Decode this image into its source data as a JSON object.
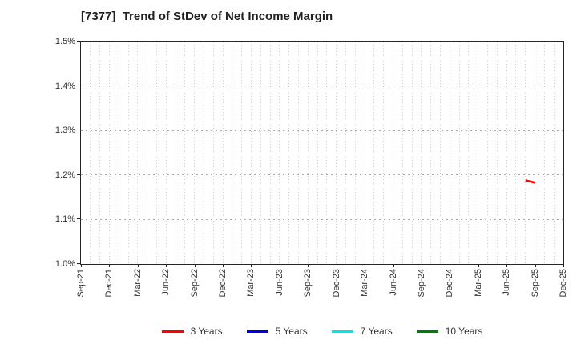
{
  "chart_data": {
    "type": "line",
    "title": "[7377]  Trend of StDev of Net Income Margin",
    "xlabel": "",
    "ylabel": "",
    "ylim": [
      1.0,
      1.5
    ],
    "y_tick_unit": "%",
    "y_ticks": [
      {
        "value": 1.5,
        "label": "1.5%"
      },
      {
        "value": 1.4,
        "label": "1.4%"
      },
      {
        "value": 1.3,
        "label": "1.3%"
      },
      {
        "value": 1.2,
        "label": "1.2%"
      },
      {
        "value": 1.1,
        "label": "1.1%"
      },
      {
        "value": 1.0,
        "label": "1.0%"
      }
    ],
    "x_tick_labels": [
      "Sep-21",
      "Dec-21",
      "Mar-22",
      "Jun-22",
      "Sep-22",
      "Dec-22",
      "Mar-23",
      "Jun-23",
      "Sep-23",
      "Dec-23",
      "Mar-24",
      "Jun-24",
      "Sep-24",
      "Dec-24",
      "Mar-25",
      "Jun-25",
      "Sep-25",
      "Dec-25"
    ],
    "x_minor_grid": "monthly",
    "grid": "dotted",
    "legend_position": "bottom-center",
    "series": [
      {
        "name": "3 Years",
        "color": "#ff0000",
        "points": [
          {
            "x": "Aug-25",
            "y": 1.188
          },
          {
            "x": "Sep-25",
            "y": 1.183
          }
        ]
      },
      {
        "name": "5 Years",
        "color": "#0000ee",
        "points": []
      },
      {
        "name": "7 Years",
        "color": "#00e5e5",
        "points": []
      },
      {
        "name": "10 Years",
        "color": "#008000",
        "points": []
      }
    ]
  }
}
